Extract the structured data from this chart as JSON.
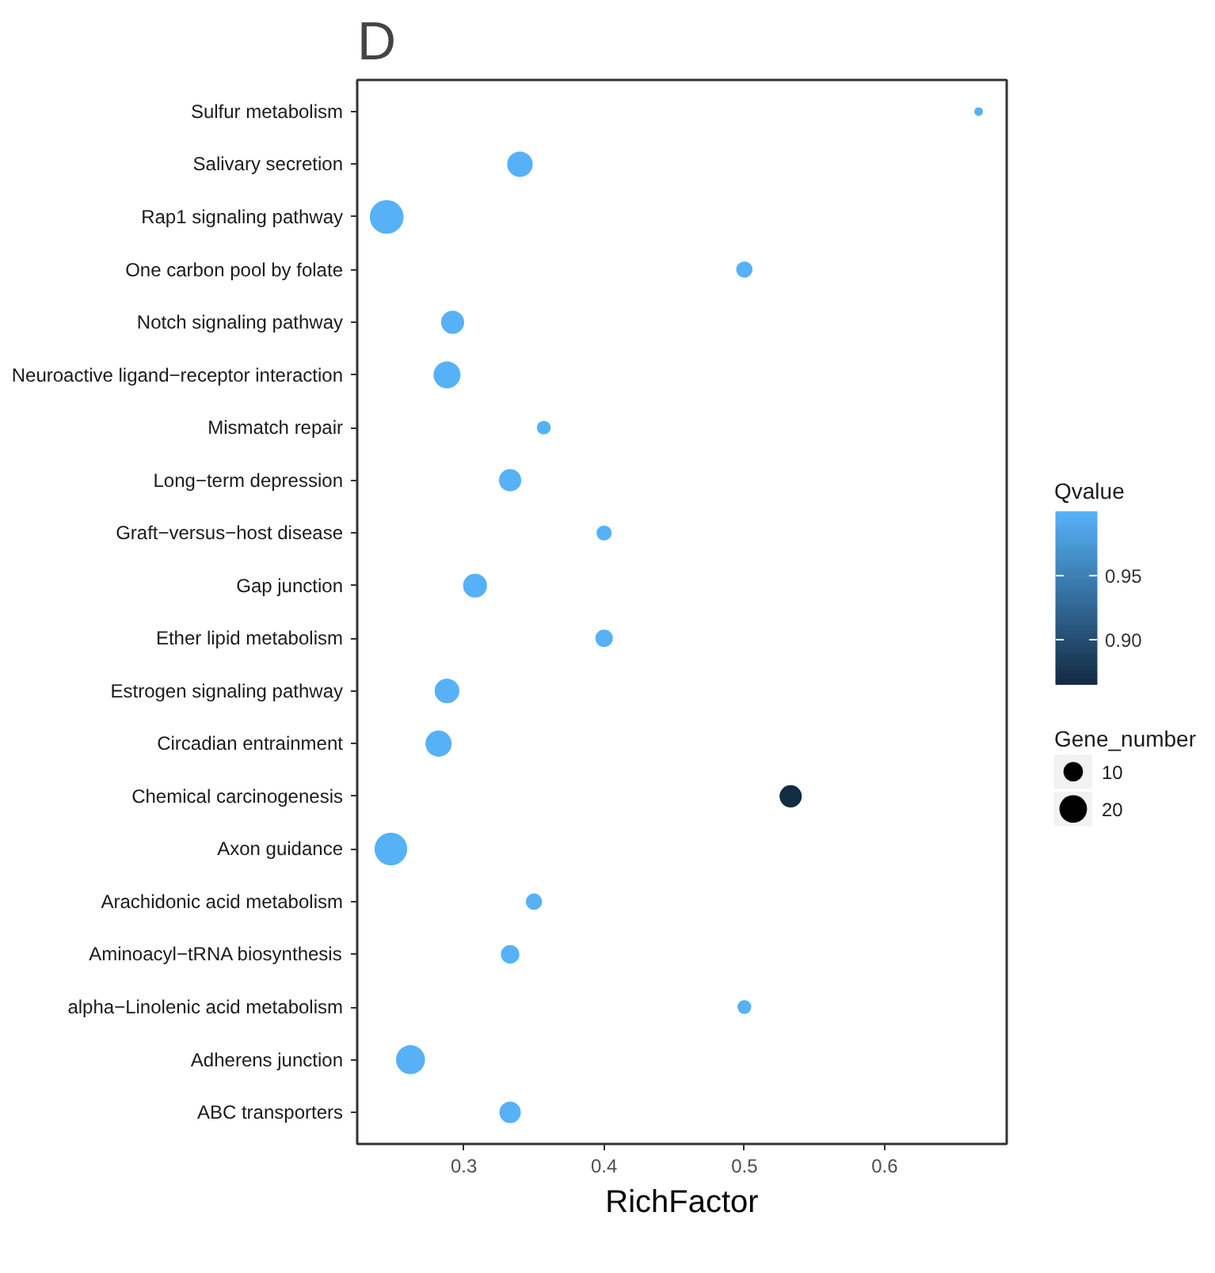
{
  "chart_data": {
    "type": "bubble",
    "title": "D",
    "xlabel": "RichFactor",
    "clabel": "Qvalue",
    "legend_title": "Gene_number",
    "categories": [
      "Sulfur metabolism",
      "Salivary secretion",
      "Rap1 signaling pathway",
      "One carbon pool by folate",
      "Notch signaling pathway",
      "Neuroactive ligand−receptor interaction",
      "Mismatch repair",
      "Long−term depression",
      "Graft−versus−host disease",
      "Gap junction",
      "Ether lipid metabolism",
      "Estrogen signaling pathway",
      "Circadian entrainment",
      "Chemical carcinogenesis",
      "Axon guidance",
      "Arachidonic acid metabolism",
      "Aminoacyl−tRNA biosynthesis",
      "alpha−Linolenic acid metabolism",
      "Adherens junction",
      "ABC transporters"
    ],
    "values": [
      0.667,
      0.34,
      0.245,
      0.5,
      0.292,
      0.288,
      0.357,
      0.333,
      0.4,
      0.308,
      0.4,
      0.288,
      0.282,
      0.533,
      0.248,
      0.35,
      0.333,
      0.5,
      0.262,
      0.333
    ],
    "sizes": [
      2,
      17,
      30,
      7,
      14,
      19,
      5,
      13,
      6,
      15,
      8,
      16,
      18,
      13,
      28,
      7,
      9,
      5,
      22,
      12
    ],
    "cvalues": [
      1.0,
      1.0,
      1.0,
      1.0,
      1.0,
      1.0,
      1.0,
      1.0,
      1.0,
      1.0,
      1.0,
      1.0,
      1.0,
      0.865,
      1.0,
      1.0,
      1.0,
      1.0,
      1.0,
      1.0
    ],
    "clim": [
      0.865,
      1.0
    ],
    "cticks": [
      {
        "value": 0.9,
        "label": "0.90"
      },
      {
        "value": 0.95,
        "label": "0.95"
      }
    ],
    "orientation": "horizontal",
    "size_legend": [
      10,
      20
    ],
    "xlim": [
      0.224,
      0.687
    ],
    "xticks": [
      {
        "value": 0.3,
        "label": "0.3"
      },
      {
        "value": 0.4,
        "label": "0.4"
      },
      {
        "value": 0.5,
        "label": "0.5"
      },
      {
        "value": 0.6,
        "label": "0.6"
      }
    ],
    "grid": false
  }
}
